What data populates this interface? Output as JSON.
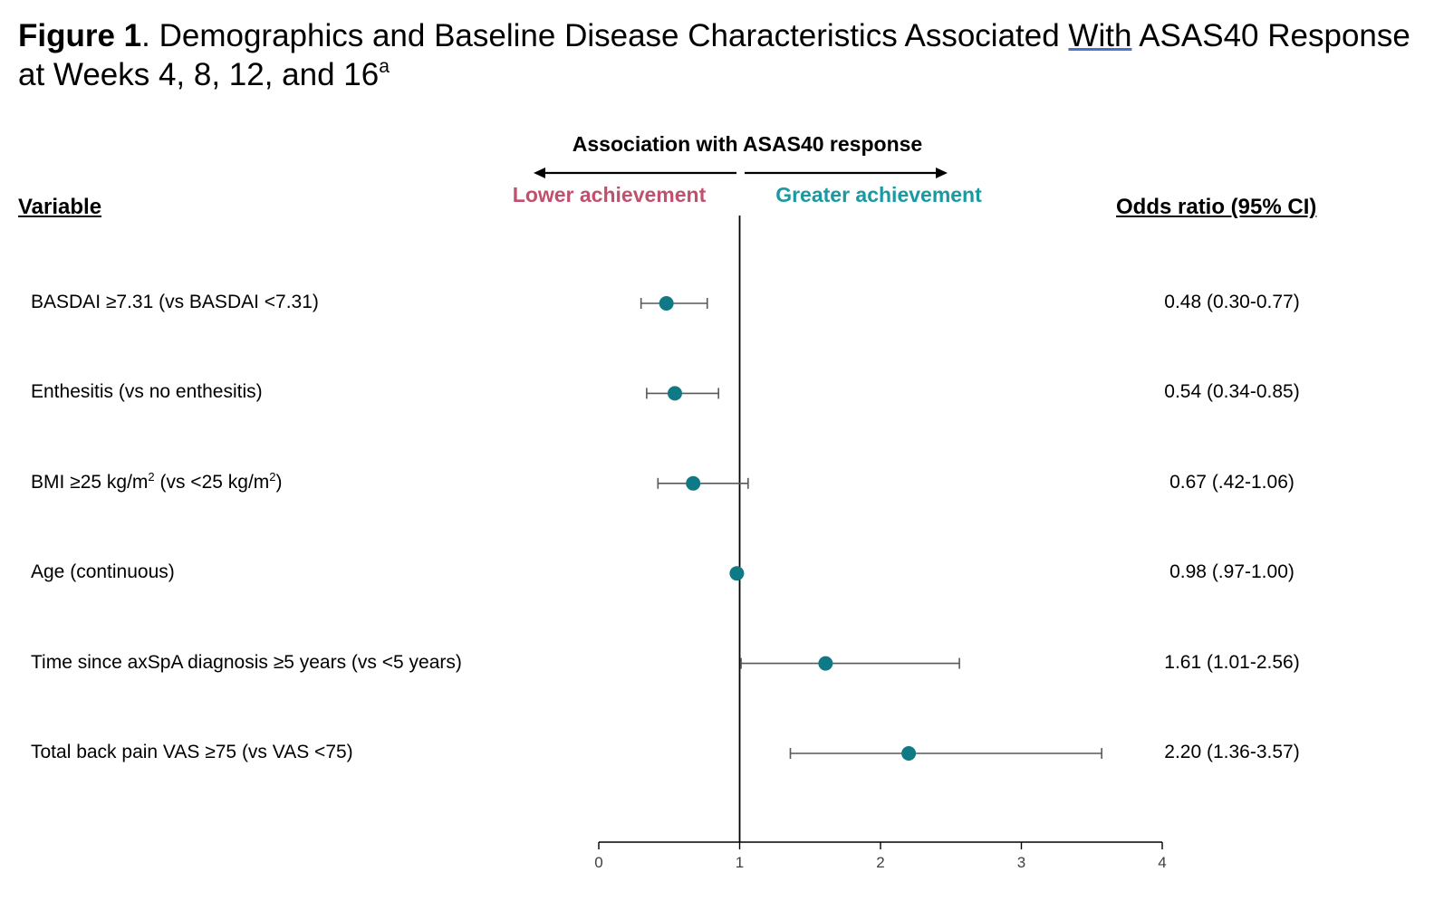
{
  "title": {
    "figure_label": "Figure 1",
    "text_before_with": ". Demographics and Baseline Disease Characteristics Associated ",
    "with_word": "With",
    "text_after_with": " ASAS40 Response at Weeks 4, 8, 12, and 16",
    "footnote_marker": "a"
  },
  "colors": {
    "marker": "#0f7a86",
    "lower": "#c0506e",
    "greater": "#1a9aa0",
    "whisker": "#595959"
  },
  "chart_data": {
    "type": "scatter",
    "subtype": "forest-plot",
    "direction_header": "Association with ASAS40 response",
    "lower_label": "Lower achievement",
    "greater_label": "Greater achievement",
    "column_header_variable": "Variable",
    "column_header_or": "Odds ratio (95% CI)",
    "xlim": [
      0,
      4
    ],
    "xticks": [
      "0",
      "1",
      "2",
      "3",
      "4"
    ],
    "reference_line": 1,
    "rows": [
      {
        "label_parts": [
          "BASDAI ≥7.31 (vs BASDAI <7.31)"
        ],
        "or": 0.48,
        "lo": 0.3,
        "hi": 0.77,
        "or_text": "0.48 (0.30-0.77)"
      },
      {
        "label_parts": [
          "Enthesitis (vs no enthesitis)"
        ],
        "or": 0.54,
        "lo": 0.34,
        "hi": 0.85,
        "or_text": "0.54 (0.34-0.85)"
      },
      {
        "label_parts": [
          "BMI ≥25 kg/m",
          "2",
          "  (vs <25 kg/m",
          "2",
          ")"
        ],
        "or": 0.67,
        "lo": 0.42,
        "hi": 1.06,
        "or_text": "0.67 (.42-1.06)"
      },
      {
        "label_parts": [
          "Age (continuous)"
        ],
        "or": 0.98,
        "lo": 0.97,
        "hi": 1.0,
        "or_text": "0.98 (.97-1.00)"
      },
      {
        "label_parts": [
          "Time since axSpA diagnosis ≥5 years (vs <5 years)"
        ],
        "or": 1.61,
        "lo": 1.01,
        "hi": 2.56,
        "or_text": "1.61 (1.01-2.56)"
      },
      {
        "label_parts": [
          "Total back pain VAS ≥75 (vs VAS <75)"
        ],
        "or": 2.2,
        "lo": 1.36,
        "hi": 3.57,
        "or_text": "2.20 (1.36-3.57)"
      }
    ]
  }
}
